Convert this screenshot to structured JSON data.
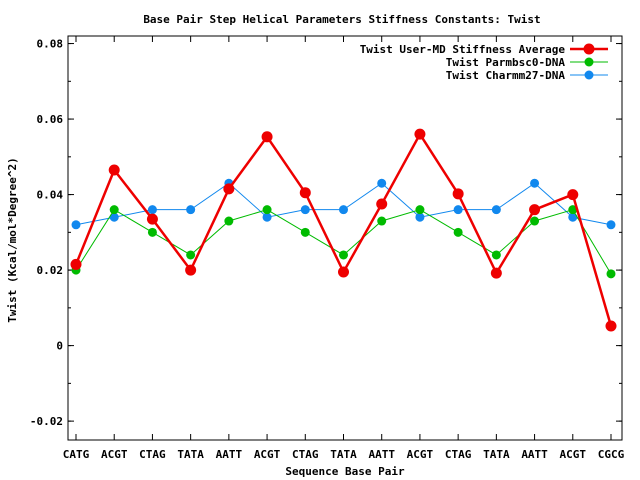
{
  "chart_data": {
    "type": "line",
    "title": "Base Pair Step Helical Parameters Stiffness Constants: Twist",
    "xlabel": "Sequence Base Pair",
    "ylabel": "Twist (Kcal/mol*Degree^2)",
    "categories": [
      "CATG",
      "ACGT",
      "CTAG",
      "TATA",
      "AATT",
      "ACGT",
      "CTAG",
      "TATA",
      "AATT",
      "ACGT",
      "CTAG",
      "TATA",
      "AATT",
      "ACGT",
      "CGCG"
    ],
    "ylim": [
      -0.025,
      0.082
    ],
    "yticks": [
      -0.02,
      0,
      0.02,
      0.04,
      0.06,
      0.08
    ],
    "ytick_labels": [
      "-0.02",
      "0",
      "0.02",
      "0.04",
      "0.06",
      "0.08"
    ],
    "grid": false,
    "legend_position": "top-right",
    "series": [
      {
        "name": "Twist User-MD Stiffness Average",
        "color": "#ee0000",
        "values": [
          0.0215,
          0.0465,
          0.0335,
          0.02,
          0.0415,
          0.0553,
          0.0405,
          0.0195,
          0.0375,
          0.056,
          0.0402,
          0.0192,
          0.036,
          0.04,
          0.0052
        ]
      },
      {
        "name": "Twist Parmbsc0-DNA",
        "color": "#00bb00",
        "values": [
          0.02,
          0.036,
          0.03,
          0.024,
          0.033,
          0.036,
          0.03,
          0.024,
          0.033,
          0.036,
          0.03,
          0.024,
          0.033,
          0.036,
          0.019
        ]
      },
      {
        "name": "Twist Charmm27-DNA",
        "color": "#1188ee",
        "values": [
          0.032,
          0.034,
          0.036,
          0.036,
          0.043,
          0.034,
          0.036,
          0.036,
          0.043,
          0.034,
          0.036,
          0.036,
          0.043,
          0.034,
          0.032
        ]
      }
    ]
  }
}
